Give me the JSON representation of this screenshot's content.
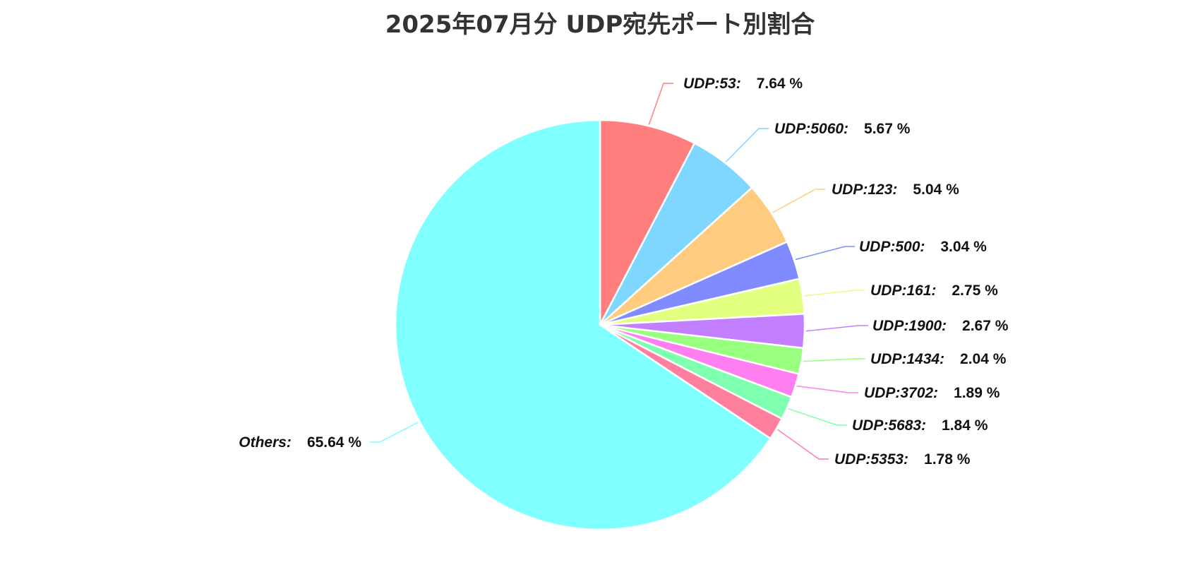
{
  "chart_data": {
    "type": "pie",
    "title": "2025年07月分 UDP宛先ポート別割合",
    "unit": "%",
    "start_angle_deg": 0,
    "direction": "clockwise",
    "legend": "none (outside leader-line labels)",
    "slices": [
      {
        "label": "UDP:53",
        "value": 7.64,
        "color": "#ff7f7f"
      },
      {
        "label": "UDP:5060",
        "value": 5.67,
        "color": "#7fd6ff"
      },
      {
        "label": "UDP:123",
        "value": 5.04,
        "color": "#ffcc7f"
      },
      {
        "label": "UDP:500",
        "value": 3.04,
        "color": "#7f8bff"
      },
      {
        "label": "UDP:161",
        "value": 2.75,
        "color": "#e3ff7f"
      },
      {
        "label": "UDP:1900",
        "value": 2.67,
        "color": "#c27fff"
      },
      {
        "label": "UDP:1434",
        "value": 2.04,
        "color": "#98ff7f"
      },
      {
        "label": "UDP:3702",
        "value": 1.89,
        "color": "#ff7ff0"
      },
      {
        "label": "UDP:5683",
        "value": 1.84,
        "color": "#7fffb0"
      },
      {
        "label": "UDP:5353",
        "value": 1.78,
        "color": "#ff7f9f"
      },
      {
        "label": "Others",
        "value": 65.64,
        "color": "#7fffff"
      }
    ]
  }
}
